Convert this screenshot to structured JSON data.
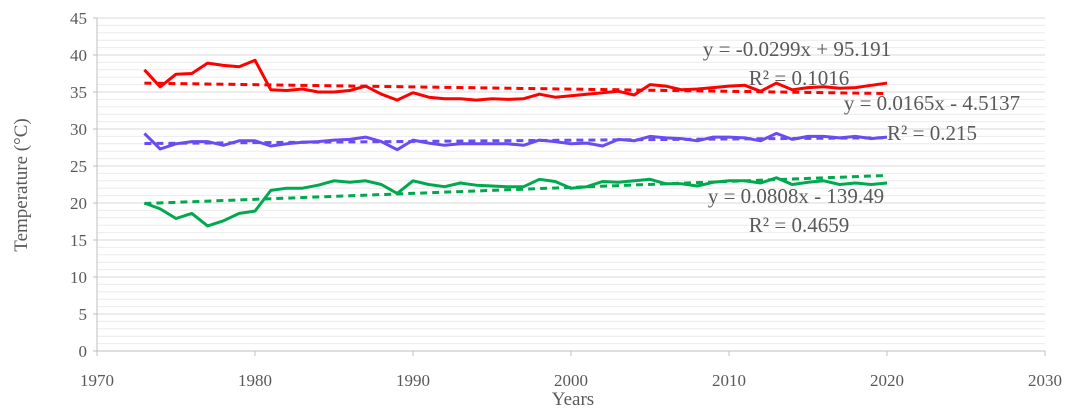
{
  "chart_data": {
    "type": "line",
    "title": "",
    "xlabel": "Years",
    "ylabel": "Temperature (°C)",
    "xlim": [
      1970,
      2030
    ],
    "ylim": [
      0,
      45
    ],
    "x_ticks": [
      "1970",
      "1980",
      "1990",
      "2000",
      "2010",
      "2020",
      "2030"
    ],
    "y_ticks": [
      "0",
      "5",
      "10",
      "15",
      "20",
      "25",
      "30",
      "35",
      "40",
      "45"
    ],
    "grid": true,
    "legend": "none",
    "x": [
      1973,
      1974,
      1975,
      1976,
      1977,
      1978,
      1979,
      1980,
      1981,
      1982,
      1983,
      1984,
      1985,
      1986,
      1987,
      1988,
      1989,
      1990,
      1991,
      1992,
      1993,
      1994,
      1995,
      1996,
      1997,
      1998,
      1999,
      2000,
      2001,
      2002,
      2003,
      2004,
      2005,
      2006,
      2007,
      2008,
      2009,
      2010,
      2011,
      2012,
      2013,
      2014,
      2015,
      2016,
      2017,
      2018,
      2019,
      2020
    ],
    "series": [
      {
        "color": "#ff0000",
        "values": [
          38.0,
          35.7,
          37.4,
          37.5,
          38.9,
          38.6,
          38.4,
          39.3,
          35.3,
          35.2,
          35.4,
          35.0,
          35.0,
          35.2,
          35.8,
          34.7,
          33.9,
          34.9,
          34.3,
          34.1,
          34.1,
          33.9,
          34.1,
          34.0,
          34.1,
          34.7,
          34.3,
          34.5,
          34.7,
          34.9,
          35.1,
          34.6,
          36.0,
          35.8,
          35.3,
          35.4,
          35.6,
          35.8,
          35.9,
          35.1,
          36.2,
          35.3,
          35.6,
          35.7,
          35.5,
          35.6,
          35.9,
          36.2
        ],
        "trend": {
          "slope": -0.0299,
          "intercept": 95.191,
          "x_range": [
            1973,
            2020
          ]
        },
        "equation": "y = -0.0299x + 95.191",
        "r2": "R² = 0.1016"
      },
      {
        "color": "#6a4cf0",
        "values": [
          29.4,
          27.3,
          28.0,
          28.3,
          28.3,
          27.8,
          28.4,
          28.4,
          27.7,
          28.0,
          28.2,
          28.3,
          28.5,
          28.6,
          28.9,
          28.3,
          27.2,
          28.5,
          28.1,
          27.8,
          28.0,
          28.0,
          28.0,
          28.0,
          27.8,
          28.5,
          28.3,
          28.0,
          28.1,
          27.7,
          28.6,
          28.4,
          29.0,
          28.8,
          28.7,
          28.4,
          28.9,
          28.9,
          28.8,
          28.4,
          29.4,
          28.6,
          29.0,
          29.0,
          28.8,
          29.0,
          28.7,
          28.9
        ],
        "trend": {
          "slope": 0.0165,
          "intercept": -4.5137,
          "x_range": [
            1973,
            2020
          ]
        },
        "equation": "y = 0.0165x - 4.5137",
        "r2": "R² = 0.215"
      },
      {
        "color": "#00a84f",
        "values": [
          20.0,
          19.2,
          17.9,
          18.6,
          16.9,
          17.6,
          18.6,
          18.9,
          21.7,
          22.0,
          22.0,
          22.4,
          23.0,
          22.8,
          23.0,
          22.5,
          21.3,
          23.0,
          22.5,
          22.2,
          22.7,
          22.4,
          22.3,
          22.2,
          22.2,
          23.2,
          22.9,
          22.0,
          22.2,
          22.9,
          22.8,
          23.0,
          23.2,
          22.6,
          22.6,
          22.3,
          22.8,
          23.0,
          23.0,
          22.7,
          23.4,
          22.5,
          22.8,
          23.0,
          22.5,
          22.7,
          22.5,
          22.7
        ],
        "trend": {
          "slope": 0.0808,
          "intercept": -139.49,
          "x_range": [
            1973,
            2020
          ]
        },
        "equation": "y = 0.0808x - 139.49",
        "r2": "R² = 0.4659"
      }
    ]
  }
}
